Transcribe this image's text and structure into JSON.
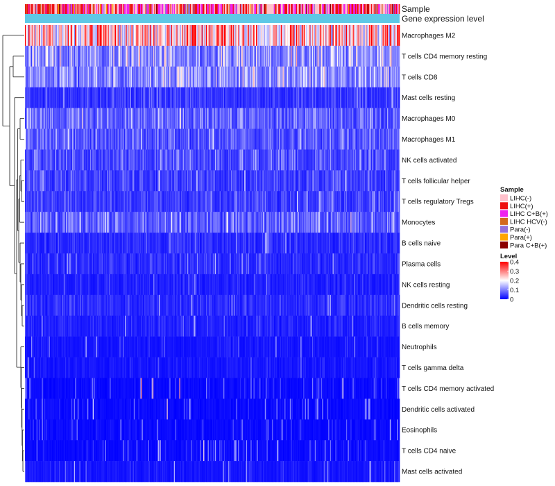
{
  "chart_data": {
    "type": "heatmap",
    "title": "",
    "top_tracks": [
      {
        "name": "Sample",
        "kind": "categorical"
      },
      {
        "name": "Gene expression level",
        "kind": "constant",
        "color": "#5ec8e6"
      }
    ],
    "rows": [
      "Macrophages M2",
      "T cells CD4 memory resting",
      "T cells CD8",
      "Mast cells resting",
      "Macrophages M0",
      "Macrophages M1",
      "NK cells activated",
      "T cells follicular helper",
      "T cells regulatory  Tregs",
      "Monocytes",
      "B cells naive",
      "Plasma cells",
      "NK cells resting",
      "Dendritic cells resting",
      "B cells memory",
      "Neutrophils",
      "T cells gamma delta",
      "T cells CD4 memory activated",
      "Dendritic cells activated",
      "Eosinophils",
      "T cells CD4 naive",
      "Mast cells activated"
    ],
    "approx_row_mean_level": [
      0.3,
      0.14,
      0.13,
      0.05,
      0.09,
      0.08,
      0.07,
      0.06,
      0.06,
      0.09,
      0.04,
      0.04,
      0.03,
      0.04,
      0.03,
      0.02,
      0.02,
      0.01,
      0.01,
      0.01,
      0.01,
      0.02
    ],
    "legend_sample": {
      "title": "Sample",
      "items": [
        {
          "label": "LIHC(-)",
          "color": "#ffc0cb"
        },
        {
          "label": "LIHC(+)",
          "color": "#ee1111"
        },
        {
          "label": "LIHC C+B(+)",
          "color": "#ee22ee"
        },
        {
          "label": "LIHC HCV(-)",
          "color": "#d2691e"
        },
        {
          "label": "Para(-)",
          "color": "#9370db"
        },
        {
          "label": "Para(+)",
          "color": "#ffa500"
        },
        {
          "label": "Para C+B(+)",
          "color": "#8b0000"
        }
      ]
    },
    "legend_level": {
      "title": "Level",
      "ticks": [
        "0.4",
        "0.3",
        "0.2",
        "0.1",
        "0"
      ],
      "range": [
        0,
        0.4
      ],
      "colors": [
        "#0000ff",
        "#ffffff",
        "#ff0000"
      ]
    },
    "sample_count": 420
  }
}
